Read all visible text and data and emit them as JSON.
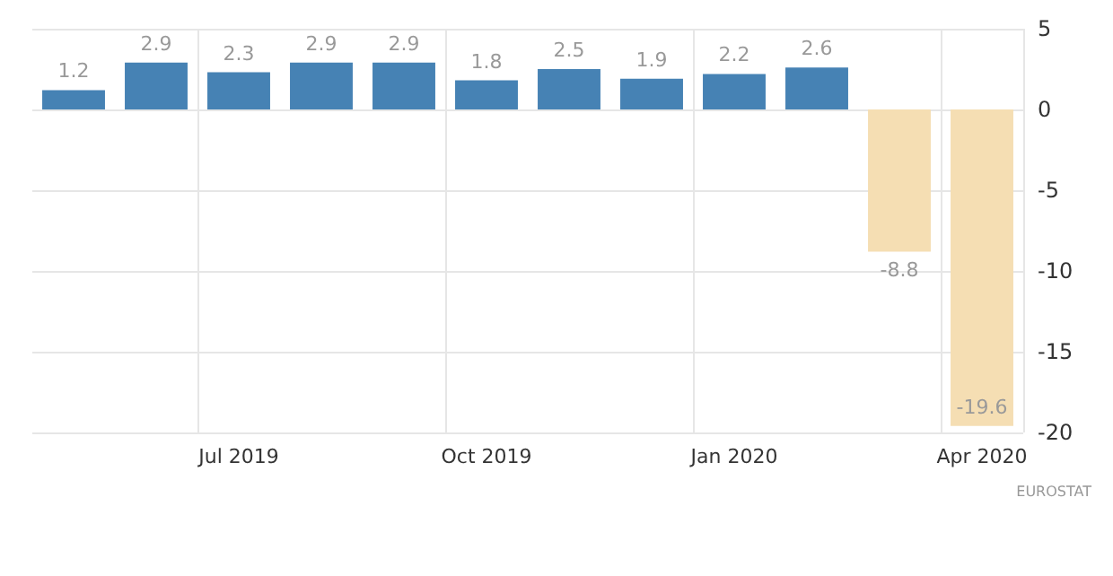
{
  "chart_data": {
    "type": "bar",
    "categories": [
      null,
      null,
      "Jul 2019",
      null,
      null,
      "Oct 2019",
      null,
      null,
      "Jan 2020",
      null,
      null,
      "Apr 2020"
    ],
    "values": [
      1.2,
      2.9,
      2.3,
      2.9,
      2.9,
      1.8,
      2.5,
      1.9,
      2.2,
      2.6,
      -8.8,
      -19.6
    ],
    "colors": [
      "#4682b4",
      "#4682b4",
      "#4682b4",
      "#4682b4",
      "#4682b4",
      "#4682b4",
      "#4682b4",
      "#4682b4",
      "#4682b4",
      "#4682b4",
      "#f5deb3",
      "#f5deb3"
    ],
    "ylim": [
      -20,
      5
    ],
    "yticks": [
      -20,
      -15,
      -10,
      -5,
      0,
      5
    ],
    "grid": true,
    "data_labels": true,
    "annotations": [
      "EUROSTAT"
    ]
  }
}
